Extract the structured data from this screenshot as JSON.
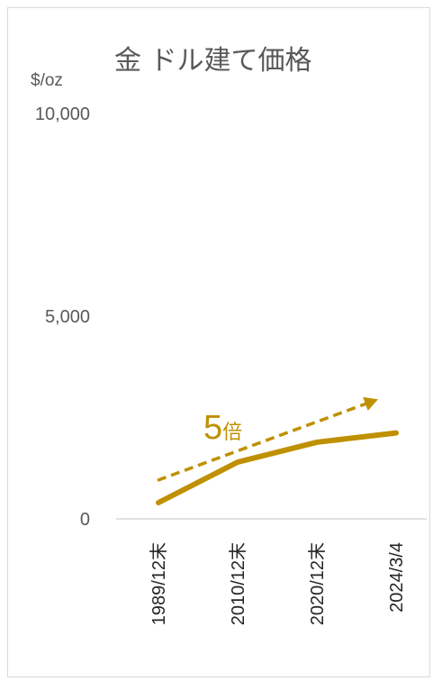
{
  "chart_data": {
    "type": "line",
    "title": "金 ドル建て価格",
    "ylabel": "$/oz",
    "ylim": [
      0,
      10000
    ],
    "yticks": [
      {
        "value": 0,
        "label": "0"
      },
      {
        "value": 5000,
        "label": "5,000"
      },
      {
        "value": 10000,
        "label": "10,000"
      }
    ],
    "categories": [
      "1989/12末",
      "2010/12末",
      "2020/12末",
      "2024/3/4"
    ],
    "series": [
      {
        "values": [
          400,
          1400,
          1890,
          2120
        ]
      }
    ],
    "annotation": {
      "number": "5",
      "suffix": "倍",
      "arrow_from": {
        "x": "1989/12末",
        "y": 950
      },
      "arrow_to": {
        "x": "2024/3/4",
        "y": 2950
      }
    },
    "grid": false,
    "legend": "none"
  },
  "colors": {
    "series": "#bf9000",
    "text": "#595959",
    "axis": "#d9d9d9"
  }
}
